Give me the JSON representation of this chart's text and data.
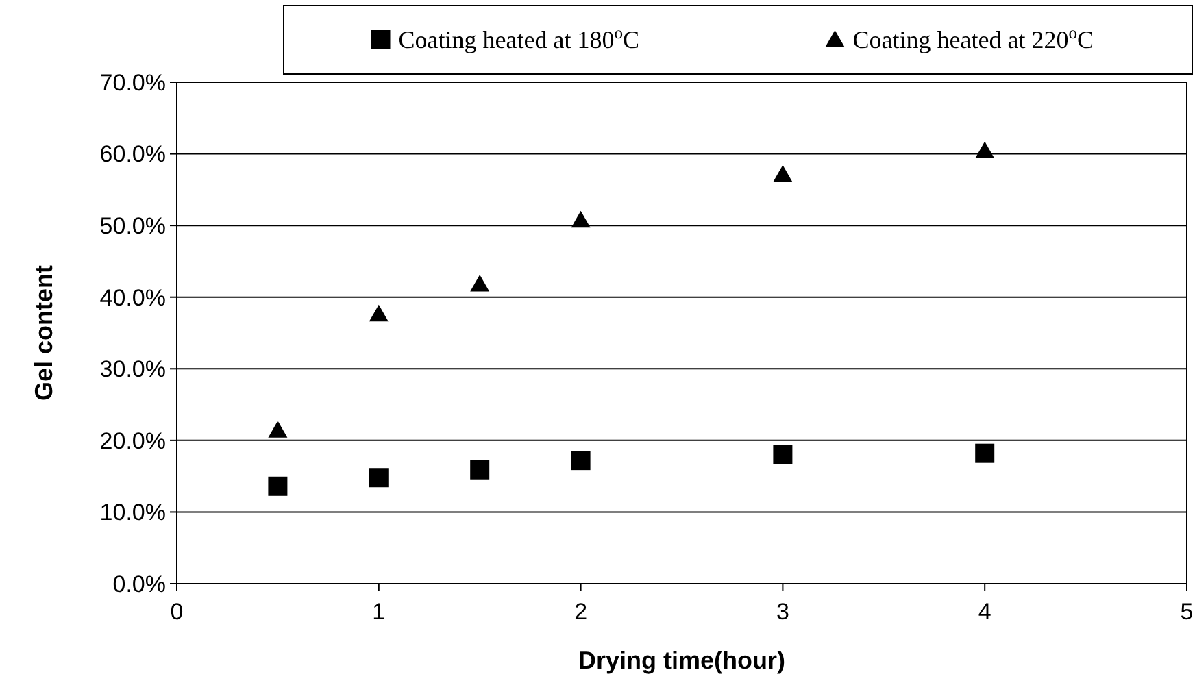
{
  "chart_data": {
    "type": "scatter",
    "xlabel": "Drying time(hour)",
    "ylabel": "Gel content",
    "xlim": [
      0,
      5
    ],
    "xticks": [
      0,
      1,
      2,
      3,
      4,
      5
    ],
    "ylim": [
      0,
      70
    ],
    "yticks": [
      {
        "value": 0,
        "label": "0.0%"
      },
      {
        "value": 10,
        "label": "10.0%"
      },
      {
        "value": 20,
        "label": "20.0%"
      },
      {
        "value": 30,
        "label": "30.0%"
      },
      {
        "value": 40,
        "label": "40.0%"
      },
      {
        "value": 50,
        "label": "50.0%"
      },
      {
        "value": 60,
        "label": "60.0%"
      },
      {
        "value": 70,
        "label": "70.0%"
      }
    ],
    "grid": "y",
    "legend": "top",
    "series": [
      {
        "name": "Coating heated at 180$^{o}$C",
        "color": "#000000",
        "marker": "square",
        "x": [
          0.5,
          1,
          1.5,
          2,
          3,
          4
        ],
        "values": [
          13.6,
          14.8,
          15.9,
          17.2,
          18.0,
          18.2
        ]
      },
      {
        "name": "Coating heated at 220$^{o}$C",
        "color": "#000000",
        "marker": "triangle",
        "x": [
          0.5,
          1,
          1.5,
          2,
          3,
          4
        ],
        "values": [
          21.4,
          37.6,
          41.8,
          50.7,
          57.1,
          60.4
        ]
      }
    ]
  }
}
